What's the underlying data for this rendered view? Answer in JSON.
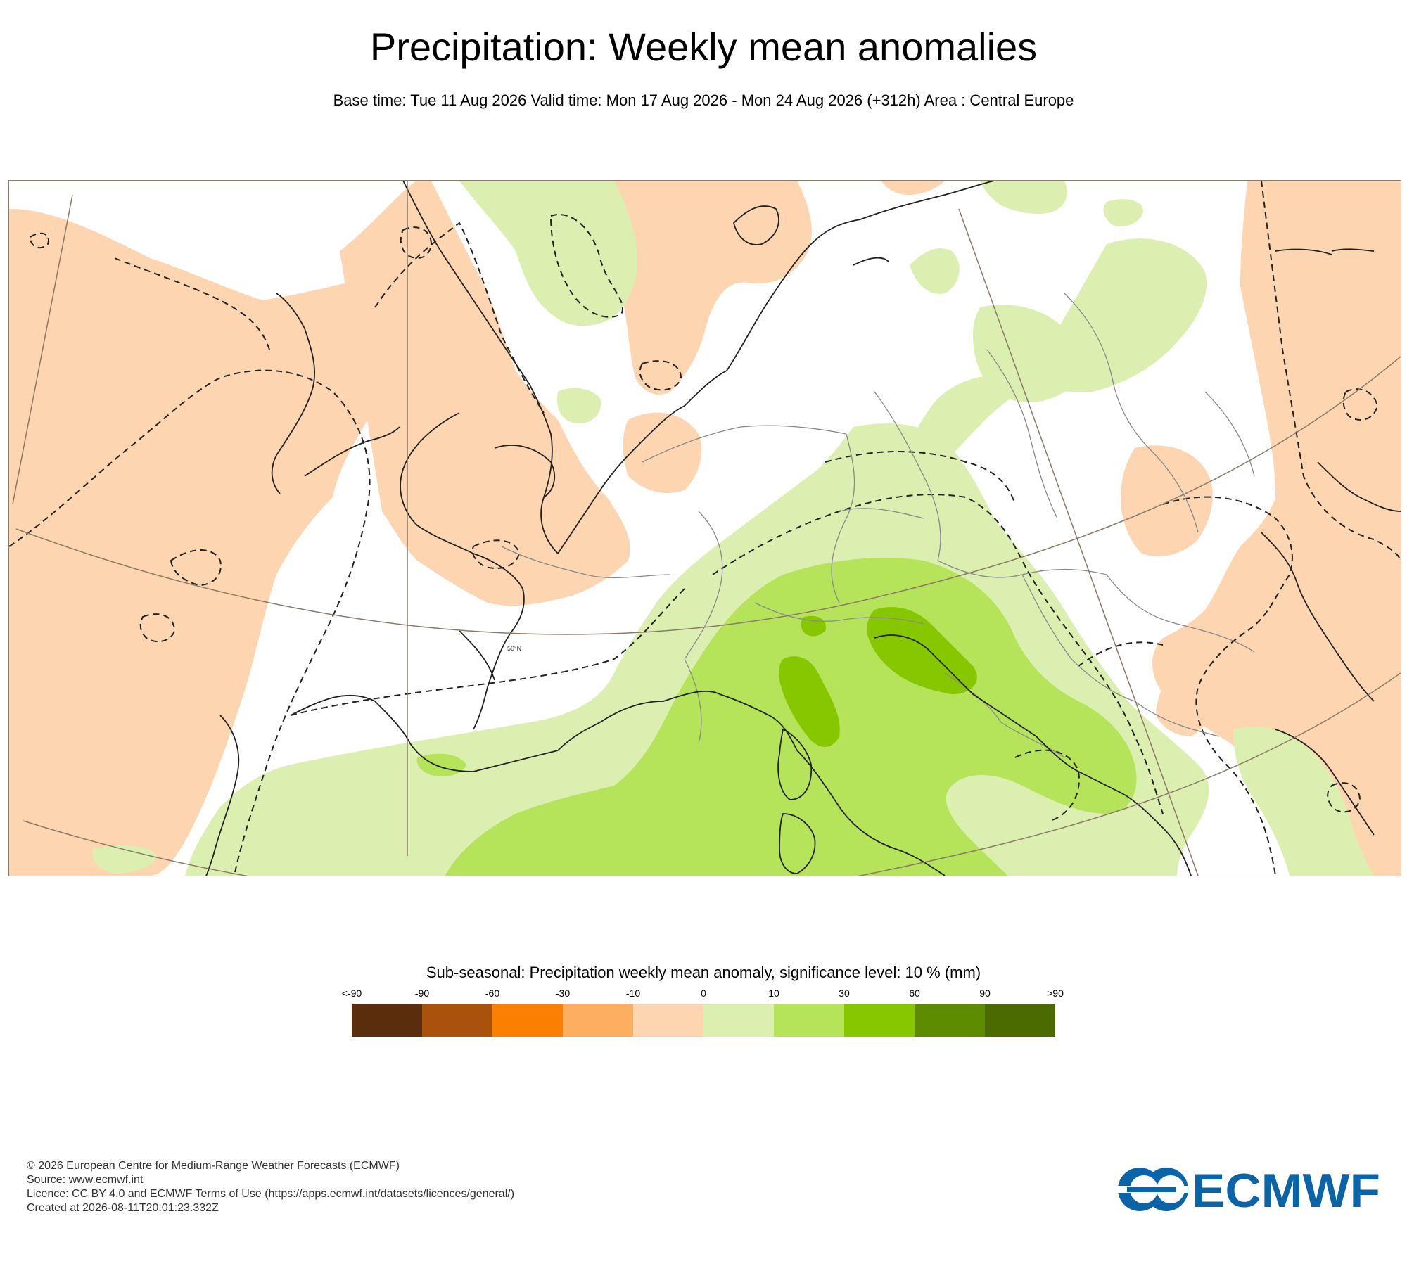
{
  "header": {
    "title": "Precipitation: Weekly mean anomalies",
    "subtitle": "Base time: Tue 11 Aug 2026 Valid time: Mon 17 Aug 2026 - Mon 24 Aug 2026 (+312h) Area : Central Europe"
  },
  "map": {
    "graticule_label": "50°N"
  },
  "legend": {
    "title": "Sub-seasonal: Precipitation weekly mean anomaly, significance level: 10 % (mm)",
    "ticks": [
      "<-90",
      "-90",
      "-60",
      "-30",
      "-10",
      "0",
      "10",
      "30",
      "60",
      "90",
      ">90"
    ],
    "colors": [
      "#5a2d0c",
      "#a8520c",
      "#fb7f00",
      "#fdae61",
      "#fdd5b0",
      "#dbefb0",
      "#b5e35a",
      "#86c700",
      "#5e8c00",
      "#4b6b00"
    ]
  },
  "footer": {
    "copyright": "© 2026 European Centre for Medium-Range Weather Forecasts (ECMWF)",
    "source": "Source: www.ecmwf.int",
    "licence": "Licence: CC BY 4.0 and ECMWF Terms of Use (https://apps.ecmwf.int/datasets/licences/general/)",
    "created": "Created at 2026-08-11T20:01:23.332Z"
  },
  "logo": {
    "text": "ECMWF",
    "color": "#0c64a8"
  }
}
